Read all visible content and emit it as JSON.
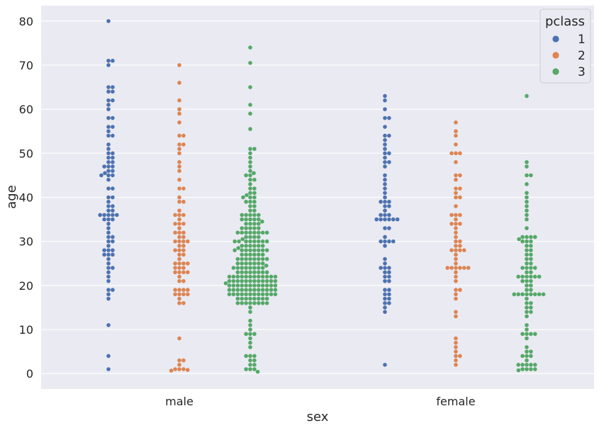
{
  "chart_data": {
    "type": "scatter",
    "subtype": "swarm",
    "xlabel": "sex",
    "ylabel": "age",
    "categories": [
      "male",
      "female"
    ],
    "hue_title": "pclass",
    "ylim": [
      -3.5,
      83.5
    ],
    "yticks": [
      0,
      10,
      20,
      30,
      40,
      50,
      60,
      70,
      80
    ],
    "grid": true,
    "legend_position": "top-right",
    "series": [
      {
        "name": "1",
        "color": "#4c72b0",
        "data": {
          "male": [
            80,
            71,
            71,
            70,
            65,
            65,
            64,
            64,
            62,
            62,
            61,
            60,
            58,
            58,
            56,
            56,
            55,
            54,
            54,
            52,
            51,
            50,
            50,
            49,
            49,
            48,
            48,
            47,
            47,
            47,
            46,
            46,
            45.5,
            45,
            45,
            45,
            44,
            42,
            42,
            40,
            40,
            39,
            38,
            38,
            37,
            37,
            36,
            36,
            36,
            36,
            36,
            35,
            35,
            35,
            34,
            33,
            32,
            31,
            31,
            30,
            30,
            29,
            28,
            28,
            28,
            27,
            27,
            27,
            26,
            25,
            24,
            24,
            23,
            22,
            21,
            19,
            19,
            18,
            17,
            11,
            4,
            1
          ],
          "female": [
            63,
            62,
            60,
            58,
            58,
            56,
            54,
            54,
            53,
            52,
            51,
            50,
            50,
            49,
            48,
            48,
            47,
            45,
            44,
            43,
            42,
            41,
            40,
            39,
            39,
            39,
            38,
            38,
            37,
            36,
            36,
            36,
            35,
            35,
            35,
            35,
            35,
            35,
            33,
            33,
            31,
            30,
            30,
            30,
            30,
            29,
            26,
            25,
            24,
            24,
            24,
            23,
            23,
            22,
            22,
            21,
            21,
            19,
            19,
            18,
            18,
            17,
            17,
            16,
            16,
            15,
            14,
            2
          ]
        }
      },
      {
        "name": "2",
        "color": "#dd8452",
        "data": {
          "male": [
            70,
            66,
            62,
            60,
            59,
            57,
            54,
            54,
            52,
            52,
            51,
            50,
            48,
            47,
            46,
            44,
            42,
            42,
            40,
            39,
            39,
            37,
            36,
            36,
            36,
            35,
            34,
            34,
            34,
            33,
            32,
            32,
            32,
            31,
            31,
            30,
            30,
            30,
            30,
            29,
            29,
            28,
            28,
            28,
            27,
            27,
            26,
            25,
            25,
            25,
            25,
            24,
            24,
            24,
            23,
            23,
            23,
            23,
            22,
            21,
            21,
            19,
            19,
            19,
            19,
            18,
            18,
            18,
            18,
            17,
            16,
            16,
            8,
            3,
            3,
            2,
            1,
            1,
            1,
            0.83,
            0.67
          ],
          "female": [
            57,
            55,
            54,
            52,
            50,
            50,
            50,
            48,
            45,
            45,
            44,
            42,
            42,
            41,
            40,
            40,
            38,
            36,
            36,
            36,
            35,
            34,
            34,
            34,
            33,
            32,
            31,
            30,
            30,
            29,
            29,
            28,
            28,
            28,
            28,
            27,
            26,
            25,
            24,
            24,
            24,
            24,
            24,
            24,
            23,
            22,
            21,
            19,
            19,
            18,
            17,
            14,
            13,
            8,
            7,
            6,
            5,
            4,
            4,
            3,
            2
          ]
        }
      },
      {
        "name": "3",
        "color": "#55a868",
        "data": {
          "male": [
            74,
            70.5,
            65,
            61,
            59,
            55.5,
            51,
            51,
            50,
            49,
            48,
            47,
            46,
            45.5,
            45,
            45,
            44,
            44,
            43,
            42,
            42,
            41,
            41,
            40.5,
            40,
            40,
            40,
            39,
            39,
            39,
            38,
            38,
            37,
            37,
            36,
            36,
            36,
            36,
            36,
            35,
            35,
            35,
            35,
            35,
            34.5,
            34,
            34,
            34,
            34,
            33,
            33,
            33,
            33,
            33,
            32,
            32,
            32,
            32,
            32,
            32,
            32,
            32,
            31,
            31,
            31,
            31,
            30.5,
            30,
            30,
            30,
            30,
            30,
            30,
            30,
            30,
            29,
            29,
            29,
            29,
            29,
            29,
            28.5,
            28,
            28,
            28,
            28,
            28,
            28,
            28,
            28,
            27,
            27,
            27,
            27,
            27,
            27,
            26,
            26,
            26,
            26,
            26,
            26,
            26,
            26,
            25,
            25,
            25,
            25,
            25,
            25,
            25,
            24.5,
            24,
            24,
            24,
            24,
            24,
            24,
            24,
            24,
            23,
            23,
            23,
            23,
            23,
            23,
            23,
            23,
            22,
            22,
            22,
            22,
            22,
            22,
            22,
            22,
            22,
            22,
            22,
            22,
            21,
            21,
            21,
            21,
            21,
            21,
            21,
            21,
            21,
            21,
            21,
            21,
            20.5,
            20,
            20,
            20,
            20,
            20,
            20,
            20,
            20,
            20,
            20,
            20,
            20,
            19,
            19,
            19,
            19,
            19,
            19,
            19,
            19,
            19,
            19,
            19,
            19,
            18,
            18,
            18,
            18,
            18,
            18,
            18,
            18,
            18,
            18,
            18,
            18,
            17,
            17,
            17,
            17,
            17,
            17,
            17,
            17,
            16,
            16,
            16,
            16,
            16,
            16,
            16,
            16,
            15,
            14,
            12,
            11,
            10,
            9,
            9,
            9,
            8,
            7,
            6,
            4,
            4,
            4,
            3,
            3,
            2,
            2,
            1,
            1,
            1,
            0.42
          ],
          "female": [
            63,
            48,
            47,
            45,
            45,
            43,
            41,
            40,
            39,
            38,
            37,
            36,
            35,
            33,
            31,
            31,
            31,
            31,
            30.5,
            30,
            30,
            30,
            29,
            29,
            28,
            28,
            27,
            27,
            26,
            26,
            25,
            25,
            24,
            24,
            24,
            24,
            23,
            23,
            22,
            22,
            22,
            22,
            22,
            22,
            21,
            21,
            21,
            20,
            20,
            19,
            19,
            18,
            18,
            18,
            18,
            18,
            18,
            18,
            18,
            17,
            16,
            16,
            15,
            15,
            14,
            14,
            13,
            11,
            10,
            9,
            9,
            9,
            9,
            8,
            6,
            5,
            5,
            4,
            4,
            4,
            3,
            2,
            2,
            2,
            2,
            2,
            1,
            1,
            1,
            1,
            0.75
          ]
        }
      }
    ]
  }
}
